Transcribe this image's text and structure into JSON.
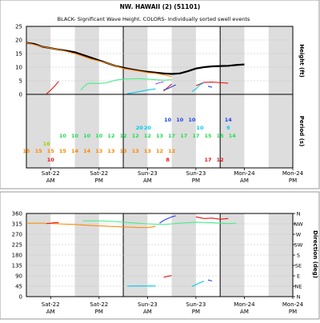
{
  "chart_data": [
    {
      "type": "line",
      "title": "NW. HAWAII (2) (51101)",
      "subtitle": "BLACK- Significant Wave Height.  COLORS- Individually sorted swell events",
      "ylabel_right": "Height (ft)",
      "ylabel_right2": "Period (s)",
      "ylim": [
        0,
        25
      ],
      "yticks": [
        "0",
        "5",
        "10",
        "15",
        "20",
        "25"
      ],
      "x_range_hours": [
        0,
        66
      ],
      "x_ticks": [
        {
          "t": 6,
          "line1": "Sat-22",
          "line2": "AM"
        },
        {
          "t": 18,
          "line1": "Sat-22",
          "line2": "PM"
        },
        {
          "t": 30,
          "line1": "Sun-23",
          "line2": "AM"
        },
        {
          "t": 42,
          "line1": "Sun-23",
          "line2": "PM"
        },
        {
          "t": 54,
          "line1": "Mon-24",
          "line2": "AM"
        },
        {
          "t": 66,
          "line1": "Mon-24",
          "line2": "PM"
        }
      ],
      "series": [
        {
          "color": "#000000",
          "x": [
            0,
            2,
            4,
            6,
            8,
            10,
            12,
            14,
            16,
            18,
            20,
            22,
            24,
            26,
            28,
            30,
            32,
            34,
            36,
            38,
            40,
            42,
            44,
            46,
            48,
            50,
            52,
            54
          ],
          "y": [
            19,
            18.5,
            17.5,
            17,
            16.5,
            16,
            15.5,
            14.5,
            13.5,
            12.5,
            11.5,
            10.5,
            9.8,
            9.2,
            8.7,
            8.3,
            8,
            7.7,
            7.5,
            7.7,
            8.5,
            9.5,
            10,
            10.3,
            10.4,
            10.5,
            10.8,
            11
          ]
        },
        {
          "color": "#ff8800",
          "x": [
            0,
            4,
            8,
            12,
            16,
            20,
            24,
            28,
            30,
            32,
            34,
            36
          ],
          "y": [
            19,
            17.5,
            16.5,
            15,
            13,
            11.5,
            9.5,
            8.5,
            8,
            7.7,
            7.2,
            6.5
          ]
        },
        {
          "color": "#44ee88",
          "x": [
            13.5,
            14,
            15,
            16,
            18,
            20,
            22,
            24,
            26,
            28,
            30,
            32,
            34,
            36
          ],
          "y": [
            1.5,
            2.5,
            3.8,
            4.1,
            4,
            4.3,
            5.2,
            5.6,
            5.7,
            5.8,
            5.6,
            5.4,
            5.2,
            5.4
          ]
        },
        {
          "color": "#ee1111",
          "x": [
            5,
            6,
            7,
            8
          ],
          "y": [
            0.2,
            1.5,
            3,
            4.8
          ]
        },
        {
          "color": "#ee1111",
          "x": [
            34,
            35,
            36
          ],
          "y": [
            1.2,
            2.5,
            3.8
          ]
        },
        {
          "color": "#ee1111",
          "x": [
            42,
            44,
            46,
            48,
            50
          ],
          "y": [
            3.2,
            4.4,
            4.5,
            4.3,
            4.1
          ]
        },
        {
          "color": "#00ccee",
          "x": [
            25,
            26,
            28,
            30,
            32
          ],
          "y": [
            0.3,
            0.5,
            1,
            1.6,
            2
          ]
        },
        {
          "color": "#00ccee",
          "x": [
            41,
            42,
            43,
            44
          ],
          "y": [
            1,
            2,
            3.5,
            4.3
          ]
        },
        {
          "color": "#2244ee",
          "x": [
            34,
            35,
            36,
            37
          ],
          "y": [
            1.6,
            2.1,
            2.8,
            3.5
          ]
        },
        {
          "color": "#2244ee",
          "x": [
            45,
            46
          ],
          "y": [
            3,
            2.6
          ]
        },
        {
          "color": "#aa44ee",
          "x": [
            32,
            33,
            34
          ],
          "y": [
            3.8,
            4.3,
            4.6
          ]
        }
      ],
      "period_rows": [
        {
          "color": "#2244ee",
          "items": [
            {
              "t": 35,
              "v": "10"
            },
            {
              "t": 38,
              "v": "10"
            },
            {
              "t": 41,
              "v": "10"
            },
            {
              "t": 50,
              "v": "14"
            }
          ]
        },
        {
          "color": "#00ccee",
          "items": [
            {
              "t": 28,
              "v": "20"
            },
            {
              "t": 30,
              "v": "20"
            },
            {
              "t": 43,
              "v": "10"
            },
            {
              "t": 50,
              "v": "9"
            }
          ]
        },
        {
          "color": "#22dd55",
          "items": [
            {
              "t": 9,
              "v": "10"
            },
            {
              "t": 12,
              "v": "10"
            },
            {
              "t": 15,
              "v": "10"
            },
            {
              "t": 18,
              "v": "10"
            },
            {
              "t": 21,
              "v": "12"
            },
            {
              "t": 24,
              "v": "12"
            },
            {
              "t": 27,
              "v": "12"
            },
            {
              "t": 30,
              "v": "12"
            },
            {
              "t": 33,
              "v": "13"
            },
            {
              "t": 36,
              "v": "17"
            },
            {
              "t": 39,
              "v": "17"
            },
            {
              "t": 42,
              "v": "17"
            },
            {
              "t": 45,
              "v": "15"
            },
            {
              "t": 48,
              "v": "15"
            },
            {
              "t": 51,
              "v": "14"
            }
          ]
        },
        {
          "color": "#aacc00",
          "items": [
            {
              "t": 5,
              "v": "16"
            }
          ]
        },
        {
          "color": "#ff8800",
          "items": [
            {
              "t": 0,
              "v": "15"
            },
            {
              "t": 3,
              "v": "15"
            },
            {
              "t": 6,
              "v": "15"
            },
            {
              "t": 9,
              "v": "15"
            },
            {
              "t": 12,
              "v": "14"
            },
            {
              "t": 15,
              "v": "14"
            },
            {
              "t": 18,
              "v": "13"
            },
            {
              "t": 21,
              "v": "13"
            },
            {
              "t": 24,
              "v": "13"
            },
            {
              "t": 27,
              "v": "13"
            },
            {
              "t": 30,
              "v": "13"
            },
            {
              "t": 33,
              "v": "12"
            },
            {
              "t": 36,
              "v": "12"
            }
          ]
        },
        {
          "color": "#ee1111",
          "items": [
            {
              "t": 6,
              "v": "10"
            },
            {
              "t": 35,
              "v": "8"
            },
            {
              "t": 45,
              "v": "17"
            },
            {
              "t": 48,
              "v": "12"
            }
          ]
        }
      ]
    },
    {
      "type": "line",
      "ylabel_right": "Direction (deg)",
      "ylim": [
        0,
        360
      ],
      "yticks": [
        "0",
        "45",
        "90",
        "135",
        "180",
        "225",
        "270",
        "315",
        "360"
      ],
      "compass": [
        "N",
        "NE",
        "E",
        "SE",
        "S",
        "SW",
        "W",
        "NW",
        "N"
      ],
      "series": [
        {
          "color": "#ff8800",
          "x": [
            0,
            4,
            8,
            12,
            16,
            20,
            24,
            28,
            30,
            32
          ],
          "y": [
            318,
            318,
            315,
            312,
            308,
            305,
            302,
            299,
            299,
            304
          ]
        },
        {
          "color": "#44ee88",
          "x": [
            14,
            18,
            22,
            26,
            30,
            34,
            38,
            42,
            46,
            50,
            52
          ],
          "y": [
            328,
            328,
            325,
            320,
            315,
            312,
            318,
            322,
            320,
            316,
            318
          ]
        },
        {
          "color": "#ee1111",
          "x": [
            5,
            6,
            7,
            8
          ],
          "y": [
            316,
            318,
            320,
            320
          ]
        },
        {
          "color": "#ee1111",
          "x": [
            34,
            35,
            36
          ],
          "y": [
            84,
            88,
            91
          ]
        },
        {
          "color": "#ee1111",
          "x": [
            42,
            44,
            46,
            48,
            50
          ],
          "y": [
            345,
            338,
            340,
            335,
            338
          ]
        },
        {
          "color": "#00ccee",
          "x": [
            25,
            26,
            28,
            30,
            32
          ],
          "y": [
            45,
            46,
            46,
            46,
            46
          ]
        },
        {
          "color": "#00ccee",
          "x": [
            41,
            42,
            43,
            44
          ],
          "y": [
            44,
            52,
            60,
            67
          ]
        },
        {
          "color": "#2244ee",
          "x": [
            33,
            34,
            35,
            36,
            37
          ],
          "y": [
            318,
            330,
            338,
            345,
            350
          ]
        },
        {
          "color": "#2244ee",
          "x": [
            45,
            46
          ],
          "y": [
            72,
            68
          ]
        }
      ]
    }
  ]
}
